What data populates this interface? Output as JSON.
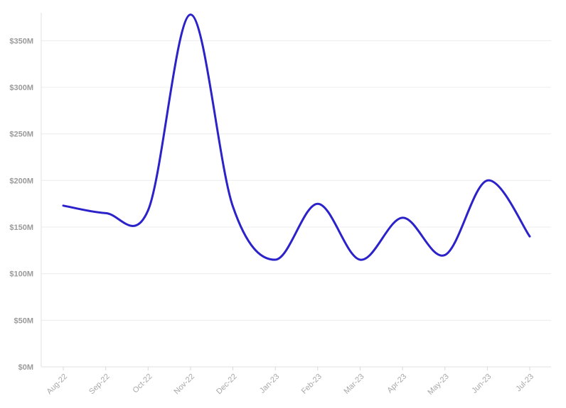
{
  "chart_data": {
    "type": "line",
    "categories": [
      "Aug-22",
      "Sep-22",
      "Oct-22",
      "Nov-22",
      "Dec-22",
      "Jan-23",
      "Feb-23",
      "Mar-23",
      "Apr-23",
      "May-23",
      "Jun-23",
      "Jul-23"
    ],
    "series": [
      {
        "values": [
          173,
          165,
          168,
          378,
          172,
          115,
          175,
          115,
          160,
          120,
          200,
          140
        ]
      }
    ],
    "ylim": [
      0,
      380
    ],
    "yticks": [
      0,
      50,
      100,
      150,
      200,
      250,
      300,
      350
    ],
    "ytick_labels": [
      "$0M",
      "$50M",
      "$100M",
      "$150M",
      "$200M",
      "$250M",
      "$300M",
      "$350M"
    ],
    "grid": true,
    "line_color": "#2b22c9",
    "smooth": true
  }
}
